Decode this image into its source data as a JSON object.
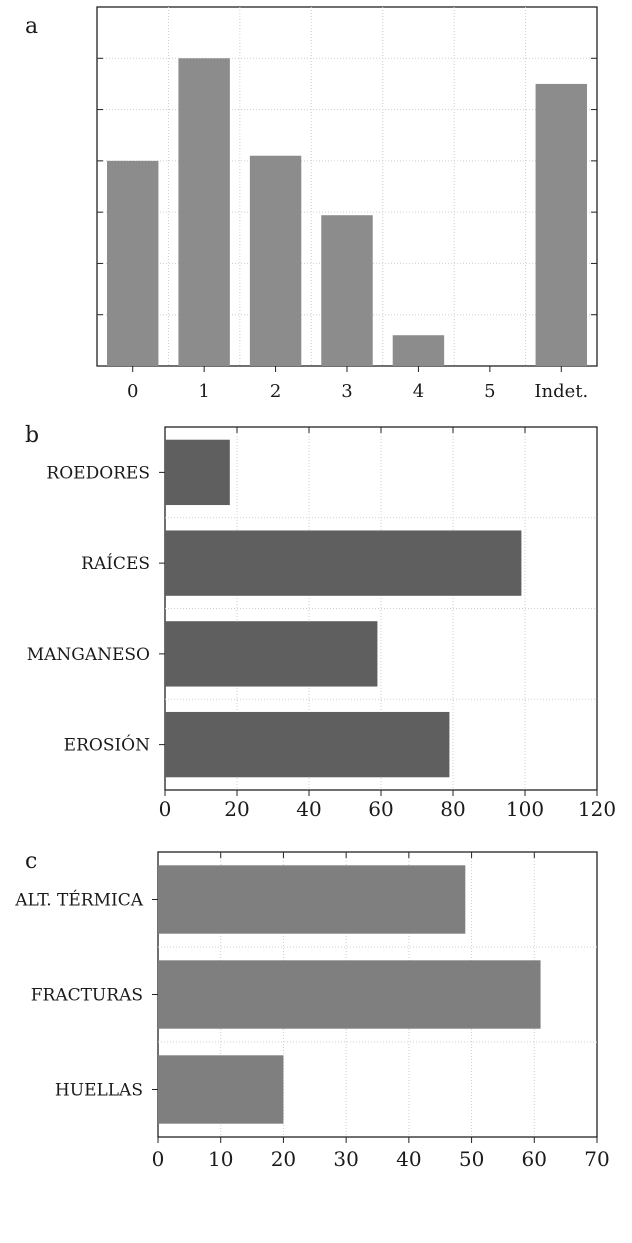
{
  "chart_data": [
    {
      "panel": "a",
      "type": "bar",
      "orientation": "vertical",
      "categories": [
        "0",
        "1",
        "2",
        "3",
        "4",
        "5",
        "Indet."
      ],
      "values": [
        20,
        30,
        20.5,
        14.7,
        3,
        0,
        27.5
      ],
      "ylim": [
        0,
        35
      ],
      "grid": true,
      "bar_color": "#8c8c8c"
    },
    {
      "panel": "b",
      "type": "bar",
      "orientation": "horizontal",
      "categories": [
        "ROEDORES",
        "RAÍCES",
        "MANGANESO",
        "EROSIÓN"
      ],
      "values": [
        18,
        99,
        59,
        79
      ],
      "xlim": [
        0,
        120
      ],
      "xticks": [
        "0",
        "20",
        "40",
        "60",
        "80",
        "100",
        "120"
      ],
      "grid": true,
      "bar_color": "#5f5f5f"
    },
    {
      "panel": "c",
      "type": "bar",
      "orientation": "horizontal",
      "categories": [
        "ALT. TÉRMICA",
        "FRACTURAS",
        "HUELLAS"
      ],
      "values": [
        49,
        61,
        20
      ],
      "xlim": [
        0,
        70
      ],
      "xticks": [
        "0",
        "10",
        "20",
        "30",
        "40",
        "50",
        "60",
        "70"
      ],
      "grid": true,
      "bar_color": "#7f7f7f"
    }
  ]
}
